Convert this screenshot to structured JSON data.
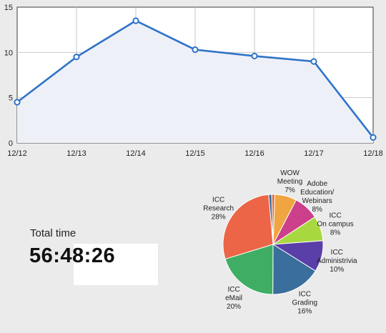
{
  "chart_data": [
    {
      "type": "line",
      "x": [
        "12/12",
        "12/13",
        "12/14",
        "12/15",
        "12/16",
        "12/17",
        "12/18"
      ],
      "series": [
        {
          "values": [
            4.5,
            9.5,
            13.5,
            10.3,
            9.6,
            9.0,
            0.6
          ]
        }
      ],
      "yticks": [
        0,
        5,
        10,
        15
      ],
      "ylim": [
        0,
        15
      ],
      "grid": true,
      "colors": {
        "line": "#2f73c8",
        "fill": "#eef0f8",
        "grid": "#c9c9c9",
        "marker_fill": "#ffffff"
      }
    },
    {
      "type": "pie",
      "slices": [
        {
          "lines": [
            "",
            "",
            ""
          ],
          "value": 1,
          "color": "#3a6aa0"
        },
        {
          "lines": [
            "",
            "",
            ""
          ],
          "value": 1,
          "color": "#e07040"
        },
        {
          "lines": [
            "WOW",
            "Meeting",
            "7%"
          ],
          "value": 7,
          "color": "#f0a540"
        },
        {
          "lines": [
            "Adobe",
            "Education/",
            "Webinars",
            "8%"
          ],
          "value": 8,
          "color": "#cc3f8a"
        },
        {
          "lines": [
            "ICC",
            "On campus",
            "8%"
          ],
          "value": 8,
          "color": "#a8d840"
        },
        {
          "lines": [
            "ICC",
            "Administrivia",
            "10%"
          ],
          "value": 10,
          "color": "#5a3fa8"
        },
        {
          "lines": [
            "ICC",
            "Grading",
            "16%"
          ],
          "value": 16,
          "color": "#3a6e9c"
        },
        {
          "lines": [
            "ICC",
            "eMail",
            "20%"
          ],
          "value": 20,
          "color": "#3fae64"
        },
        {
          "lines": [
            "ICC",
            "Research",
            "28%"
          ],
          "value": 28,
          "color": "#ec6546"
        }
      ]
    }
  ],
  "total": {
    "label": "Total time",
    "value": "56:48:26"
  }
}
